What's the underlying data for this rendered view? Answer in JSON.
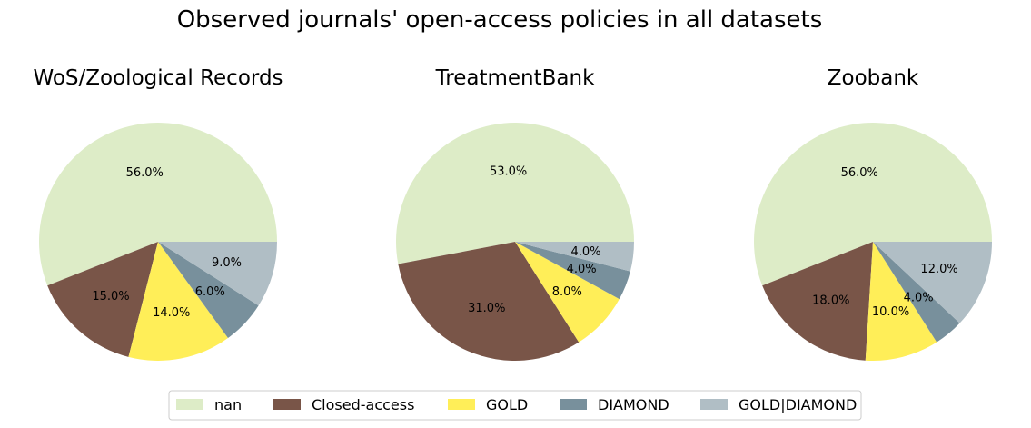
{
  "title": "Observed journals' open-access policies in all datasets",
  "chart_data": [
    {
      "type": "pie",
      "title": "WoS/Zoological Records",
      "categories": [
        "nan",
        "Closed-access",
        "GOLD",
        "DIAMOND",
        "GOLD|DIAMOND"
      ],
      "values": [
        56.0,
        15.0,
        14.0,
        6.0,
        9.0
      ],
      "labels": [
        "56.0%",
        "15.0%",
        "14.0%",
        "6.0%",
        "9.0%"
      ]
    },
    {
      "type": "pie",
      "title": "TreatmentBank",
      "categories": [
        "nan",
        "Closed-access",
        "GOLD",
        "DIAMOND",
        "GOLD|DIAMOND"
      ],
      "values": [
        53.0,
        31.0,
        8.0,
        4.0,
        4.0
      ],
      "labels": [
        "53.0%",
        "31.0%",
        "8.0%",
        "4.0%",
        "4.0%"
      ]
    },
    {
      "type": "pie",
      "title": "Zoobank",
      "categories": [
        "nan",
        "Closed-access",
        "GOLD",
        "DIAMOND",
        "GOLD|DIAMOND"
      ],
      "values": [
        56.0,
        18.0,
        10.0,
        4.0,
        12.0
      ],
      "labels": [
        "56.0%",
        "18.0%",
        "10.0%",
        "4.0%",
        "12.0%"
      ]
    }
  ],
  "legend": {
    "placement": "bottom-center",
    "entries": [
      {
        "label": "nan",
        "color": "#ddecc7"
      },
      {
        "label": "Closed-access",
        "color": "#795548"
      },
      {
        "label": "GOLD",
        "color": "#ffee58"
      },
      {
        "label": "DIAMOND",
        "color": "#78909c"
      },
      {
        "label": "GOLD|DIAMOND",
        "color": "#b0bec5"
      }
    ]
  }
}
